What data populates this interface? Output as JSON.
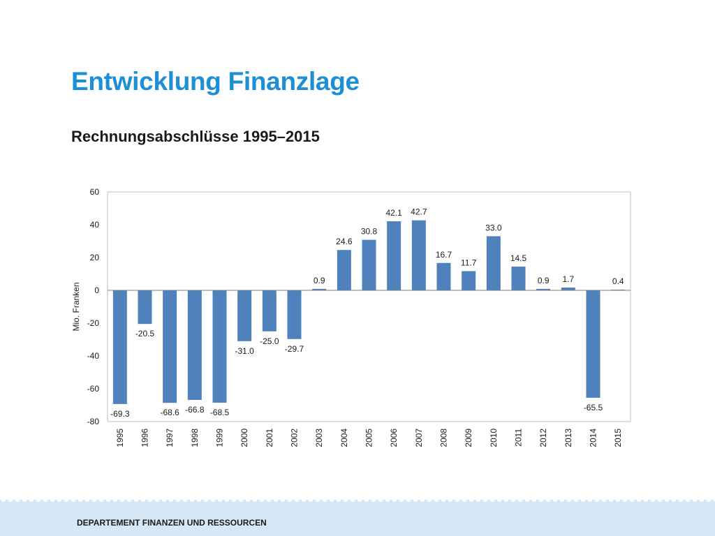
{
  "slide": {
    "title": "Entwicklung Finanzlage",
    "subtitle": "Rechnungsabschlüsse 1995–2015",
    "footer": "DEPARTEMENT FINANZEN UND RESSOURCEN"
  },
  "chart_data": {
    "type": "bar",
    "ylabel": "Mio. Franken",
    "xlabel": "",
    "ylim": [
      -80,
      60
    ],
    "yticks": [
      60,
      40,
      20,
      0,
      -20,
      -40,
      -60,
      -80
    ],
    "grid": false,
    "bar_color": "#4f81bd",
    "categories": [
      "1995",
      "1996",
      "1997",
      "1998",
      "1999",
      "2000",
      "2001",
      "2002",
      "2003",
      "2004",
      "2005",
      "2006",
      "2007",
      "2008",
      "2009",
      "2010",
      "2011",
      "2012",
      "2013",
      "2014",
      "2015"
    ],
    "values": [
      -69.3,
      -20.5,
      -68.6,
      -66.8,
      -68.5,
      -31.0,
      -25.0,
      -29.7,
      0.9,
      24.6,
      30.8,
      42.1,
      42.7,
      16.7,
      11.7,
      33.0,
      14.5,
      0.9,
      1.7,
      -65.5,
      0.4
    ],
    "labels": [
      "-69.3",
      "-20.5",
      "-68.6",
      "-66.8",
      "-68.5",
      "-31.0",
      "-25.0",
      "-29.7",
      "0.9",
      "24.6",
      "30.8",
      "42.1",
      "42.7",
      "16.7",
      "11.7",
      "33.0",
      "14.5",
      "0.9",
      "1.7",
      "-65.5",
      "0.4"
    ]
  }
}
